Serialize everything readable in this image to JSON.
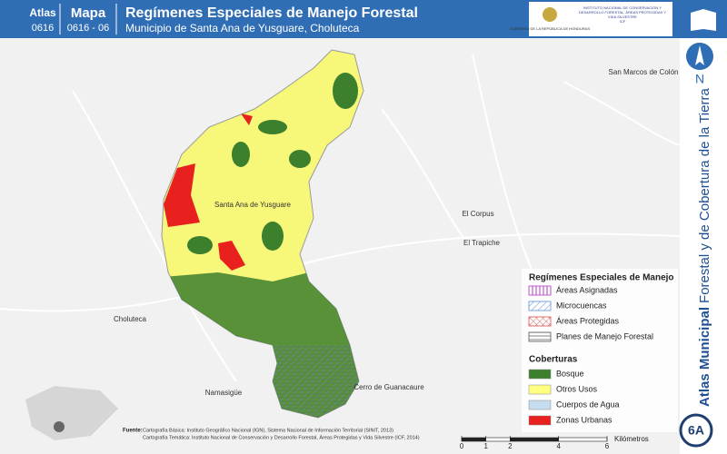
{
  "header": {
    "atlas_label": "Atlas",
    "atlas_code": "0616",
    "map_label": "Mapa",
    "map_code": "0616 - 06",
    "title": "Regímenes Especiales de Manejo Forestal",
    "subtitle": "Municipio de Santa Ana de Yusguare, Choluteca",
    "logo_left": "GOBIERNO DE LA REPÚBLICA DE HONDURAS",
    "logo_right": "INSTITUTO NACIONAL DE CONSERVACIÓN Y DESARROLLO FORESTAL, ÁREAS PROTEGIDAS Y VIDA SILVESTRE",
    "logo_right_code": "ICF"
  },
  "places": [
    "San Marcos de Colón",
    "Santa Ana de Yusguare",
    "El Corpus",
    "El Trapiche",
    "Choluteca",
    "Namasigüe",
    "Cerro de Guanacaure"
  ],
  "legend": {
    "title": "Regímenes Especiales de Manejo",
    "regimes": [
      "Áreas Asignadas",
      "Microcuencas",
      "Áreas Protegidas",
      "Planes de Manejo Forestal"
    ],
    "cover_title": "Coberturas",
    "covers": [
      "Bosque",
      "Otros Usos",
      "Cuerpos de Agua",
      "Zonas Urbanas"
    ]
  },
  "source": {
    "label": "Fuente:",
    "lines": [
      "Cartografía Básica: Instituto Geográfico Nacional (IGN), Sistema Nacional de Información Territorial (SINIT, 2013)",
      "Cartografía Temática: Instituto Nacional de Conservación y Desarrollo Forestal, Áreas Protegidas y Vida Silvestre (ICF, 2014)"
    ]
  },
  "scale": {
    "ticks": [
      0,
      1,
      2,
      4,
      6
    ],
    "unit": "Kilómetros"
  },
  "sidebar": {
    "north": "N",
    "title_bold": "Atlas Municipal",
    "title_rest": "Forestal y de Cobertura de la Tierra",
    "badge": "6A"
  }
}
